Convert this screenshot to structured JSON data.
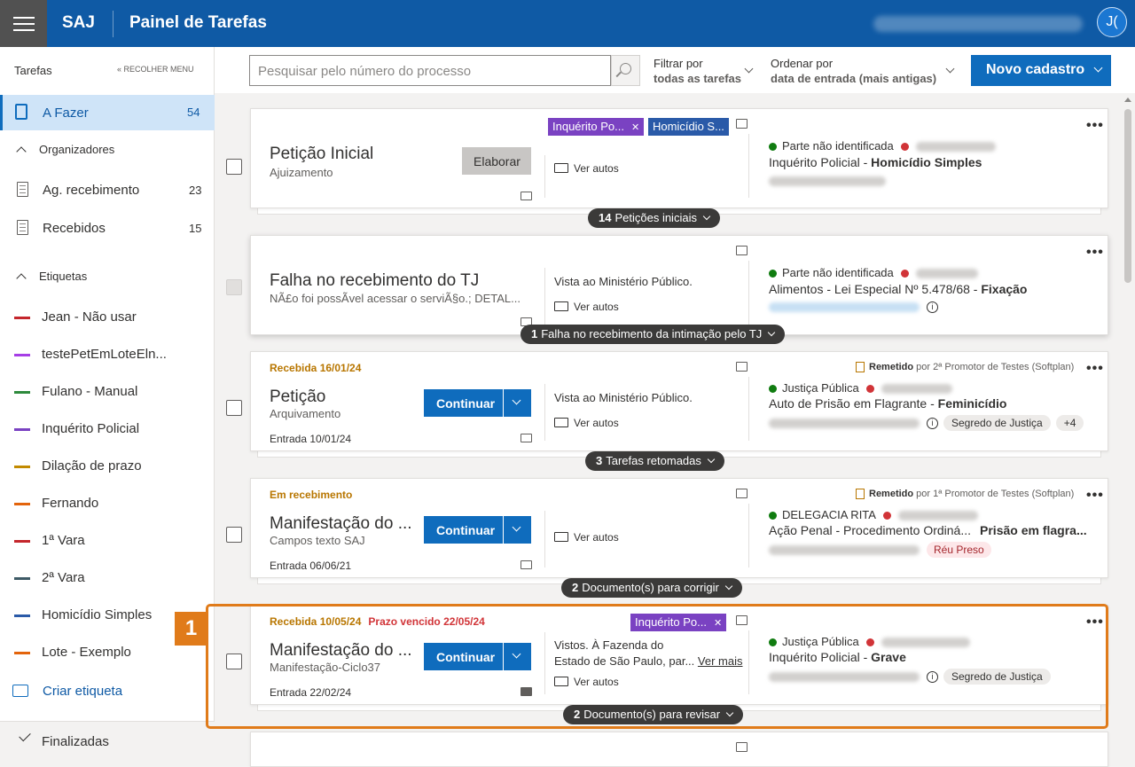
{
  "header": {
    "brand": "SAJ",
    "title": "Painel de Tarefas",
    "avatar": "J("
  },
  "sidebar": {
    "heading": "Tarefas",
    "collapse": "« RECOLHER MENU",
    "active": {
      "label": "A Fazer",
      "count": "54"
    },
    "organizadores": {
      "heading": "Organizadores",
      "items": [
        {
          "label": "Ag. recebimento",
          "count": "23"
        },
        {
          "label": "Recebidos",
          "count": "15"
        }
      ]
    },
    "etiquetas": {
      "heading": "Etiquetas",
      "items": [
        {
          "label": "Jean - Não usar",
          "color": "#c4262c"
        },
        {
          "label": "testePetEmLoteEln...",
          "color": "#a63ee6"
        },
        {
          "label": "Fulano - Manual",
          "color": "#2e8a3c"
        },
        {
          "label": "Inquérito Policial",
          "color": "#7a42c2"
        },
        {
          "label": "Dilação de prazo",
          "color": "#c28a00"
        },
        {
          "label": "Fernando",
          "color": "#e3640c"
        },
        {
          "label": "1ª Vara",
          "color": "#c4262c"
        },
        {
          "label": "2ª Vara",
          "color": "#3e5a66"
        },
        {
          "label": "Homicídio Simples",
          "color": "#2a5aa8"
        },
        {
          "label": "Lote - Exemplo",
          "color": "#e3640c"
        }
      ]
    },
    "create_tag": "Criar etiqueta",
    "finished": "Finalizadas"
  },
  "toolbar": {
    "search_placeholder": "Pesquisar pelo número do processo",
    "filter_label": "Filtrar por",
    "filter_value": "todas as tarefas",
    "order_label": "Ordenar por",
    "order_value": "data de entrada (mais antigas)",
    "new_button": "Novo cadastro"
  },
  "cards": [
    {
      "title": "Petição Inicial",
      "subtitle": "Ajuizamento",
      "button": "Elaborar",
      "chips": [
        "Inquérito Po...",
        "Homicídio S..."
      ],
      "view": "Ver autos",
      "party1": "Parte não identificada",
      "class": "Inquérito Policial - ",
      "class_b": "Homicídio Simples",
      "group": {
        "count": "14",
        "label": "Petições iniciais"
      }
    },
    {
      "title": "Falha no recebimento do TJ",
      "subtitle": "NÃ£o foi possÃvel acessar o serviÃ§o.; DETAL...",
      "middle": "Vista ao Ministério Público.",
      "view": "Ver autos",
      "party1": "Parte não identificada",
      "class": "Alimentos - Lei Especial Nº 5.478/68 - ",
      "class_b": "Fixação",
      "info": "i",
      "group": {
        "count": "1",
        "label": "Falha no recebimento da intimação pelo TJ"
      }
    },
    {
      "status": "Recebida 16/01/24",
      "title": "Petição",
      "subtitle": "Arquivamento",
      "entry": "Entrada 10/01/24",
      "button": "Continuar",
      "remetido": "Remetido",
      "remetido_by": " por 2ª Promotor de Testes (Softplan)",
      "middle": "Vista ao Ministério Público.",
      "view": "Ver autos",
      "party1": "Justiça Pública",
      "class": "Auto de Prisão em Flagrante - ",
      "class_b": "Feminicídio",
      "info": "i",
      "chip": "Segredo de Justiça",
      "extra": "+4",
      "group": {
        "count": "3",
        "label": "Tarefas retomadas"
      }
    },
    {
      "status": "Em recebimento",
      "title": "Manifestação do ...",
      "subtitle": "Campos texto SAJ",
      "entry": "Entrada 06/06/21",
      "button": "Continuar",
      "remetido": "Remetido",
      "remetido_by": " por 1ª Promotor de Testes (Softplan)",
      "view": "Ver autos",
      "party1": "DELEGACIA RITA",
      "class": "Ação Penal - Procedimento Ordiná...",
      "class_b": "Prisão em flagra...",
      "chip": "Réu Preso",
      "group": {
        "count": "2",
        "label": "Documento(s) para corrigir"
      }
    },
    {
      "status": "Recebida 10/05/24",
      "prazo": "Prazo vencido 22/05/24",
      "title": "Manifestação do ...",
      "subtitle": "Manifestação-Ciclo37",
      "entry": "Entrada 22/02/24",
      "button": "Continuar",
      "chips": [
        "Inquérito Po..."
      ],
      "middle1": "Vistos. À Fazenda do",
      "middle2": "Estado de São Paulo, par...",
      "more": "Ver mais",
      "view": "Ver autos",
      "party1": "Justiça Pública",
      "class": "Inquérito Policial - ",
      "class_b": "Grave",
      "info": "i",
      "chip": "Segredo de Justiça",
      "group": {
        "count": "2",
        "label": "Documento(s) para revisar"
      }
    }
  ],
  "highlight_badge": "1",
  "icons": [
    "hamburger-icon",
    "book-icon",
    "document-icon",
    "tag-icon",
    "check-icon",
    "search-icon",
    "chevron-down-icon",
    "folder-icon",
    "comment-icon",
    "calendar-icon",
    "more-icon",
    "info-icon",
    "file-icon"
  ]
}
